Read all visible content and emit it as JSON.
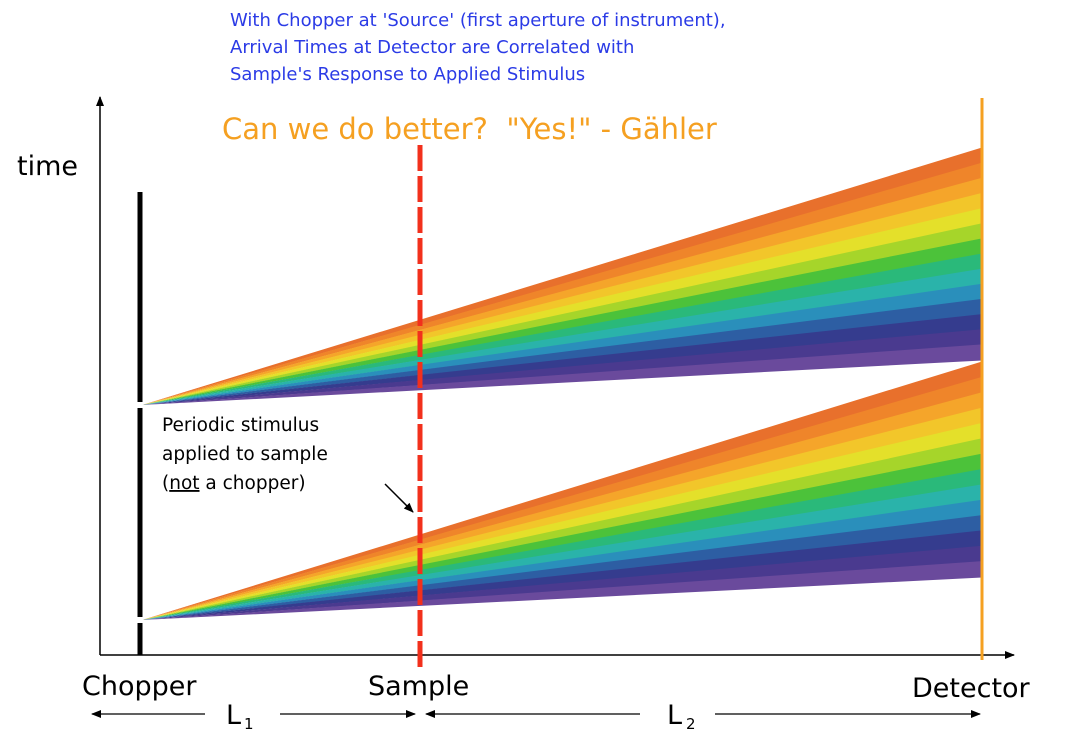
{
  "header": {
    "lines": [
      "With Chopper at 'Source' (first aperture of instrument),",
      "Arrival Times at Detector are Correlated with",
      "Sample's Response to Applied Stimulus"
    ]
  },
  "title": "Can we do better?  \"Yes!\" - Gähler",
  "axis_label": "time",
  "annotation": {
    "line1": "Periodic stimulus",
    "line2": "applied to sample",
    "line3_open": "(",
    "line3_underlined": "not",
    "line3_rest": " a chopper)"
  },
  "positions": {
    "chopper": "Chopper",
    "sample": "Sample",
    "detector": "Detector"
  },
  "distances": {
    "l1": {
      "letter": "L",
      "subscript": "1"
    },
    "l2": {
      "letter": "L",
      "subscript": "2"
    }
  }
}
